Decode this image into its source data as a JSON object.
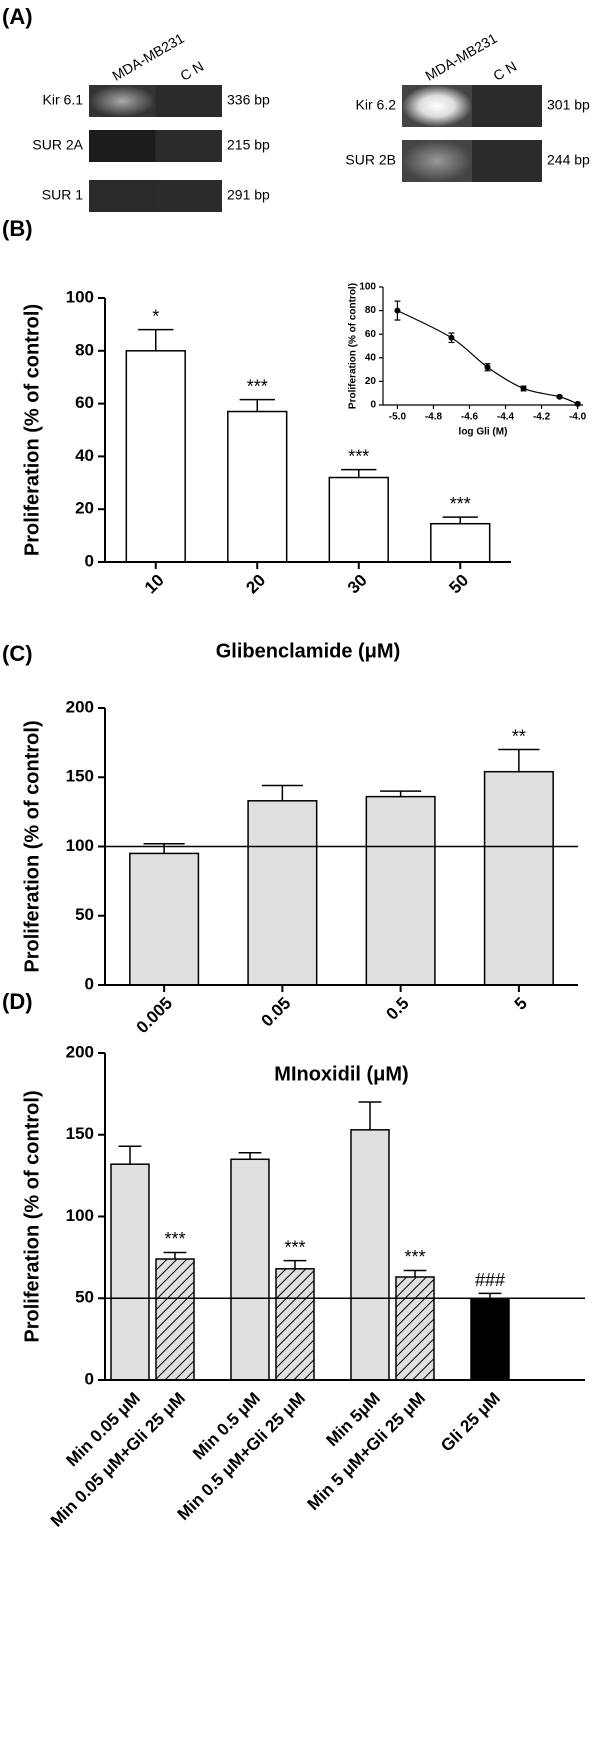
{
  "gel": {
    "panel_label": "(A)",
    "blots": [
      {
        "lanes": [
          "MDA-MB231",
          "C N"
        ],
        "bands": [
          {
            "name": "Kir 6.1",
            "size": "336 bp"
          },
          {
            "name": "SUR 2A",
            "size": "215 bp"
          },
          {
            "name": "SUR 1",
            "size": "291 bp"
          }
        ]
      },
      {
        "lanes": [
          "MDA-MB231",
          "C N"
        ],
        "bands": [
          {
            "name": "Kir 6.2",
            "size": "301 bp"
          },
          {
            "name": "SUR 2B",
            "size": "244 bp"
          }
        ]
      }
    ]
  },
  "chart_data": [
    {
      "type": "bar",
      "panel_label": "(B)",
      "categories": [
        "10",
        "20",
        "30",
        "50"
      ],
      "values": [
        80,
        57,
        32,
        14.5
      ],
      "errors": [
        8,
        4.5,
        3,
        2.5
      ],
      "annotations": [
        "*",
        "***",
        "***",
        "***"
      ],
      "color": "#ffffff",
      "ylim": [
        0,
        100
      ],
      "yticks": [
        0,
        20,
        40,
        60,
        80,
        100
      ],
      "xlabel": "Glibenclamide (μM)",
      "ylabel": "Proliferation (% of control)"
    },
    {
      "type": "scatter",
      "x": [
        -5.0,
        -4.7,
        -4.5,
        -4.3,
        -4.1,
        -4.0
      ],
      "values": [
        80,
        57,
        32,
        14,
        7,
        1
      ],
      "errors": [
        8,
        4,
        3,
        2,
        1,
        1
      ],
      "color": "#000000",
      "xlim": [
        -5.08,
        -3.97
      ],
      "ylim": [
        0,
        100
      ],
      "xticks": [
        {
          "value": -5.0,
          "label": "-5.0"
        },
        -4.8,
        -4.6,
        -4.4,
        -4.2,
        {
          "value": -4.0,
          "label": "-4.0"
        }
      ],
      "yticks": [
        0,
        20,
        40,
        60,
        80,
        100
      ],
      "xlabel": "log Gli (M)",
      "ylabel": "Proliferation (% of control)"
    },
    {
      "type": "bar",
      "panel_label": "(C)",
      "categories": [
        "0.005",
        "0.05",
        "0.5",
        "5"
      ],
      "values": [
        95,
        133,
        136,
        154
      ],
      "errors": [
        7,
        11,
        4,
        16
      ],
      "annotations": [
        null,
        null,
        null,
        "**"
      ],
      "color": "#e0e0e0",
      "reference_line": 100,
      "ylim": [
        0,
        200
      ],
      "yticks": [
        0,
        50,
        100,
        150,
        200
      ],
      "xlabel": "MInoxidil (μM)",
      "ylabel": "Proliferation (% of control)"
    },
    {
      "type": "bar",
      "panel_label": "(D)",
      "categories": [
        "Min 0.05 μM",
        "Min 0.05 μM+Gli 25 μM",
        "Min 0.5 μM",
        "Min 0.5 μM+Gli 25 μM",
        "Min 5μM",
        "Min 5 μM+Gli 25 μM",
        "Gli 25 μM"
      ],
      "values": [
        132,
        74,
        135,
        68,
        153,
        63,
        50
      ],
      "errors": [
        11,
        4,
        4,
        5,
        17,
        4,
        3
      ],
      "annotations": [
        null,
        "***",
        null,
        "***",
        null,
        "***",
        "###"
      ],
      "colors": [
        "#e0e0e0",
        "#e0e0e0",
        "#e0e0e0",
        "#e0e0e0",
        "#e0e0e0",
        "#e0e0e0",
        "#000000"
      ],
      "hatched": [
        false,
        true,
        false,
        true,
        false,
        true,
        false
      ],
      "reference_line": 50,
      "ylim": [
        0,
        200
      ],
      "yticks": [
        0,
        50,
        100,
        150,
        200
      ],
      "ylabel": "Proliferation (% of control)"
    }
  ]
}
